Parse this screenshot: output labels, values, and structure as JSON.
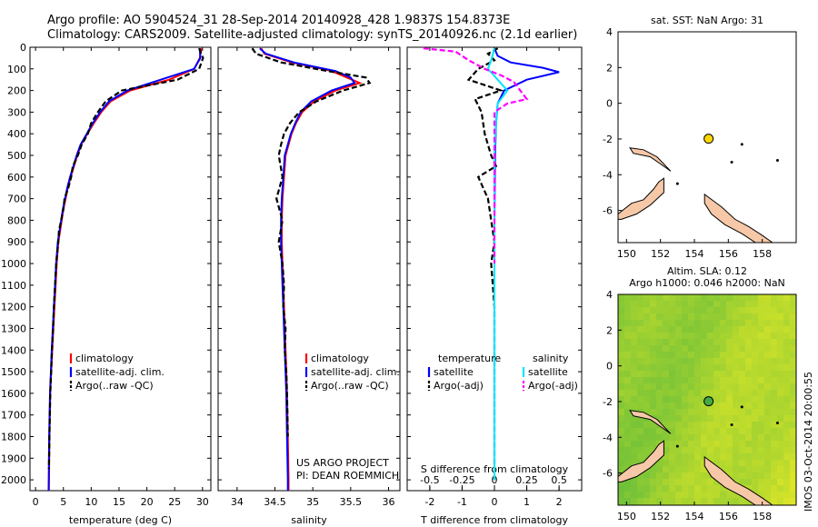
{
  "header": {
    "line1": "Argo profile: AO 5904524_31 28-Sep-2014 20140928_428 1.9837S 154.8373E",
    "line2": "Climatology: CARS2009. Satellite-adjusted climatology: synTS_20140926.nc (2.1d earlier)"
  },
  "colors": {
    "climatology": "#ff0000",
    "satellite": "#0000ff",
    "argo": "#000000",
    "sat_salinity": "#00e5ff",
    "argo_salinity": "#ff00ff",
    "land": "#f7c8a8",
    "argo_marker_sst": "#ffd700",
    "argo_marker_sla": "#44aa44"
  },
  "chart_data": [
    {
      "type": "line",
      "xlabel": "temperature (deg C)",
      "xticks": [
        0,
        5,
        10,
        15,
        20,
        25,
        30
      ],
      "xlim": [
        -1,
        31.5
      ],
      "ylim": [
        2050,
        0
      ],
      "yticks": [
        0,
        100,
        200,
        300,
        400,
        500,
        600,
        700,
        800,
        900,
        1000,
        1100,
        1200,
        1300,
        1400,
        1500,
        1600,
        1700,
        1800,
        1900,
        2000
      ],
      "legend": [
        "climatology",
        "satellite-adj. clim.",
        "Argo(..raw -QC)"
      ],
      "series": [
        {
          "key": "climatology",
          "x": [
            29.8,
            29.5,
            28.5,
            24,
            17,
            13.5,
            11.8,
            10.5,
            9.3,
            8.2,
            7.5,
            6.9,
            6.3,
            5.8,
            5.4,
            5,
            4.7,
            4.4,
            4.1,
            3.8,
            3.6,
            3.4,
            3.2,
            3,
            2.8,
            2.65,
            2.5,
            2.4
          ],
          "y": [
            5,
            50,
            100,
            150,
            200,
            250,
            300,
            350,
            400,
            450,
            500,
            550,
            600,
            650,
            700,
            750,
            800,
            850,
            900,
            1000,
            1100,
            1200,
            1300,
            1400,
            1500,
            1600,
            1800,
            2050
          ]
        },
        {
          "key": "satellite",
          "x": [
            29.5,
            29.6,
            28.5,
            22.5,
            16.5,
            13.2,
            11.6,
            10.3,
            9.2,
            8.1,
            7.4,
            6.8,
            6.2,
            5.7,
            5.3,
            4.9,
            4.6,
            4.3,
            4,
            3.7,
            3.5,
            3.3,
            3.1,
            2.9,
            2.75,
            2.6,
            2.45,
            2.35
          ],
          "y": [
            5,
            50,
            100,
            150,
            200,
            250,
            300,
            350,
            400,
            450,
            500,
            550,
            600,
            650,
            700,
            750,
            800,
            850,
            900,
            1000,
            1100,
            1200,
            1300,
            1400,
            1500,
            1600,
            1800,
            2050
          ]
        },
        {
          "key": "argo",
          "x": [
            29.4,
            30.1,
            29.4,
            25.5,
            15.5,
            12.6,
            11.2,
            10,
            9.4,
            8.3,
            7.6,
            6.7,
            6.4,
            5.9,
            5.2,
            5,
            4.6,
            4.2,
            4.1,
            3.7,
            3.5,
            3.3,
            3.15,
            2.95,
            2.8,
            2.65,
            2.5,
            2.4
          ],
          "y": [
            5,
            50,
            100,
            150,
            200,
            250,
            300,
            350,
            400,
            450,
            500,
            550,
            600,
            650,
            700,
            750,
            800,
            850,
            900,
            1000,
            1100,
            1200,
            1300,
            1400,
            1500,
            1600,
            1800,
            1950
          ]
        }
      ]
    },
    {
      "type": "line",
      "xlabel": "salinity",
      "xticks": [
        34,
        34.5,
        35,
        35.5,
        36
      ],
      "xlim": [
        33.75,
        36.15
      ],
      "ylim": [
        2050,
        0
      ],
      "legend": [
        "climatology",
        "satellite-adj. clim.",
        "Argo(..raw -QC)"
      ],
      "annotation": [
        "US ARGO PROJECT",
        "PI: DEAN ROEMMICH"
      ],
      "series": [
        {
          "key": "climatology",
          "x": [
            34.32,
            34.36,
            34.72,
            35.25,
            35.45,
            35.62,
            35.3,
            35.02,
            34.86,
            34.78,
            34.72,
            34.68,
            34.64,
            34.62,
            34.6,
            34.59,
            34.59,
            34.6,
            34.61,
            34.62,
            34.63,
            34.64,
            34.65,
            34.66,
            34.67,
            34.68,
            34.68
          ],
          "y": [
            5,
            30,
            70,
            110,
            140,
            165,
            200,
            250,
            300,
            350,
            400,
            450,
            500,
            600,
            700,
            800,
            900,
            1000,
            1100,
            1200,
            1300,
            1400,
            1500,
            1600,
            1800,
            2000,
            2050
          ]
        },
        {
          "key": "satellite",
          "x": [
            34.3,
            34.38,
            34.75,
            35.3,
            35.5,
            35.55,
            35.25,
            34.98,
            34.84,
            34.77,
            34.71,
            34.67,
            34.63,
            34.61,
            34.59,
            34.58,
            34.58,
            34.59,
            34.6,
            34.61,
            34.62,
            34.63,
            34.64,
            34.65,
            34.66,
            34.67,
            34.67
          ],
          "y": [
            5,
            30,
            70,
            110,
            140,
            165,
            200,
            250,
            300,
            350,
            400,
            450,
            500,
            600,
            700,
            800,
            900,
            1000,
            1100,
            1200,
            1300,
            1400,
            1500,
            1600,
            1800,
            2000,
            2050
          ]
        },
        {
          "key": "argo",
          "x": [
            34.2,
            34.25,
            34.58,
            35.2,
            35.7,
            35.75,
            35.4,
            35.05,
            34.82,
            34.7,
            34.62,
            34.58,
            34.55,
            34.6,
            34.52,
            34.6,
            34.55,
            34.6,
            34.62,
            34.61,
            34.64,
            34.63,
            34.65,
            34.66,
            34.67
          ],
          "y": [
            5,
            30,
            70,
            110,
            140,
            165,
            200,
            250,
            300,
            350,
            400,
            450,
            500,
            600,
            700,
            800,
            900,
            1000,
            1100,
            1200,
            1300,
            1400,
            1500,
            1600,
            1800
          ]
        }
      ]
    },
    {
      "type": "line",
      "xlabel": "T difference from climatology",
      "xlabel_top": "S difference from climatology",
      "xticks": [
        -2,
        -1,
        0,
        1,
        2
      ],
      "xticks_top": [
        "-0.5",
        "-0.25",
        "0",
        "0.25",
        "0.5"
      ],
      "xlim": [
        -2.7,
        2.7
      ],
      "ylim": [
        2050,
        0
      ],
      "legend_temperature": [
        "temperature",
        "satellite",
        "Argo(-adj)"
      ],
      "legend_salinity": [
        "salinity",
        "satellite",
        "Argo(-adj)"
      ],
      "series": [
        {
          "key": "satellite",
          "x": [
            0,
            0.1,
            0.5,
            1.5,
            2.0,
            1.0,
            0.3,
            0.1,
            0.05,
            0.02,
            0,
            0,
            0
          ],
          "y": [
            5,
            40,
            70,
            95,
            115,
            150,
            200,
            260,
            350,
            500,
            800,
            1500,
            2000
          ]
        },
        {
          "key": "argo",
          "x": [
            0.1,
            -0.2,
            0,
            -0.5,
            -0.8,
            0.2,
            -0.6,
            -0.4,
            -0.3,
            -0.1,
            0.05,
            -0.5,
            -0.2,
            -0.1,
            0,
            -0.1,
            0,
            0
          ],
          "y": [
            5,
            30,
            60,
            100,
            150,
            200,
            240,
            300,
            400,
            500,
            550,
            600,
            700,
            800,
            900,
            1000,
            1200,
            2000
          ]
        },
        {
          "key": "sat_salinity",
          "x": [
            0,
            -0.1,
            -0.2,
            0.1,
            0.4,
            0.1,
            0.05,
            0,
            0,
            0
          ],
          "y": [
            5,
            60,
            100,
            150,
            200,
            260,
            350,
            500,
            1000,
            2000
          ]
        },
        {
          "key": "argo_salinity",
          "x": [
            -2.2,
            -1.2,
            -0.8,
            -0.3,
            0.2,
            0.6,
            0.8,
            1.0,
            0.4,
            0,
            0,
            0
          ],
          "y": [
            5,
            20,
            60,
            100,
            130,
            160,
            200,
            240,
            260,
            300,
            500,
            1000
          ]
        }
      ]
    },
    {
      "type": "heatmap",
      "title": "sat. SST: NaN Argo: 31",
      "xticks": [
        150,
        152,
        154,
        156,
        158
      ],
      "yticks": [
        4,
        2,
        0,
        -2,
        -4,
        -6
      ],
      "xlim": [
        149.5,
        160
      ],
      "ylim": [
        -7.8,
        4
      ],
      "argo_position": {
        "lon": 154.8373,
        "lat": -1.9837
      }
    },
    {
      "type": "heatmap",
      "title_lines": [
        "Altim. SLA: 0.12",
        "Argo h1000: 0.046 h2000: NaN"
      ],
      "xticks": [
        150,
        152,
        154,
        156,
        158
      ],
      "yticks": [
        4,
        2,
        0,
        -2,
        -4,
        -6
      ],
      "xlim": [
        149.5,
        160
      ],
      "ylim": [
        -7.8,
        4
      ],
      "argo_position": {
        "lon": 154.8373,
        "lat": -1.9837
      }
    }
  ],
  "footer": {
    "timestamp": "IMOS 03-Oct-2014 20:00:55"
  }
}
